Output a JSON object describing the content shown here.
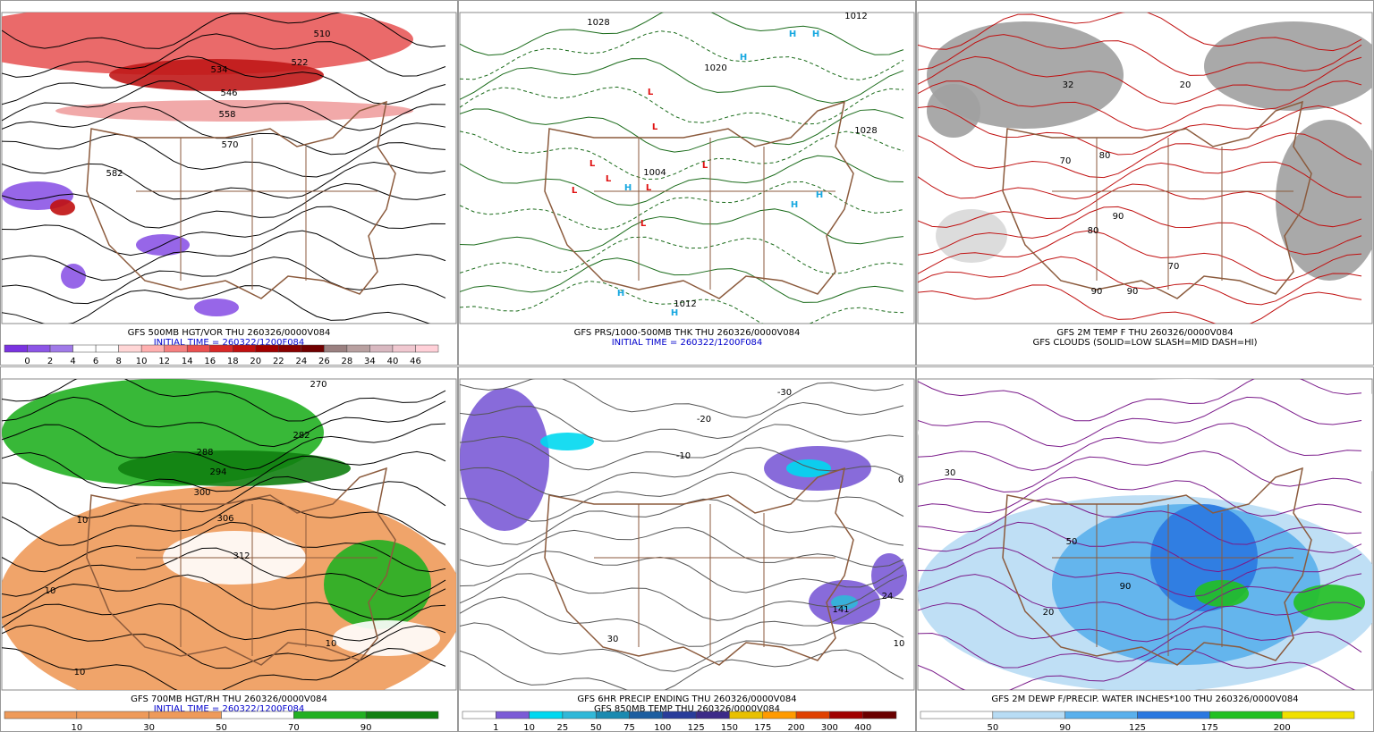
{
  "panels": [
    {
      "captions": [
        "GFS 500MB HGT/VOR THU 260326/0000V084",
        "INITIAL TIME = 260322/1200F084"
      ],
      "caption_colors": [
        "#000000",
        "#0000cc"
      ],
      "map_labels": [
        "510",
        "522",
        "534",
        "546",
        "558",
        "570",
        "582"
      ],
      "colorbar": {
        "colors": [
          "#7a33e0",
          "#8c55e6",
          "#a07ae8",
          "#ffffff",
          "#ffffff",
          "#ffd6d6",
          "#ffb0b0",
          "#f58080",
          "#ea5050",
          "#d82828",
          "#c01010",
          "#a00000",
          "#880000",
          "#700000",
          "#9a8080",
          "#b8a0a0",
          "#d8b8c0",
          "#f0c8d0",
          "#ffd0d8"
        ],
        "labels": [
          0,
          2,
          4,
          6,
          8,
          10,
          12,
          14,
          16,
          18,
          20,
          22,
          24,
          26,
          28,
          34,
          40,
          46
        ]
      }
    },
    {
      "captions": [
        "GFS PRS/1000-500MB THK THU 260326/0000V084",
        "INITIAL TIME = 260322/1200F084"
      ],
      "caption_colors": [
        "#000000",
        "#0000cc"
      ],
      "map_labels": [
        "1028",
        "1020",
        "1028",
        "1012",
        "1004",
        "1012",
        "H",
        "H",
        "H",
        "H",
        "H",
        "H",
        "H",
        "H",
        "L",
        "L",
        "L",
        "L",
        "L",
        "L",
        "L",
        "L"
      ]
    },
    {
      "captions": [
        "GFS 2M TEMP F THU 260326/0000V084",
        "GFS CLOUDS (SOLID=LOW SLASH=MID DASH=HI)"
      ],
      "caption_colors": [
        "#000000",
        "#000000"
      ],
      "map_labels": [
        "32",
        "20",
        "70",
        "80",
        "90",
        "80",
        "70",
        "90",
        "90"
      ]
    },
    {
      "captions": [
        "GFS 700MB HGT/RH THU 260326/0000V084",
        "INITIAL TIME = 260322/1200F084"
      ],
      "caption_colors": [
        "#000000",
        "#0000cc"
      ],
      "map_labels": [
        "270",
        "282",
        "288",
        "294",
        "300",
        "306",
        "312",
        "10",
        "10",
        "10",
        "10"
      ],
      "colorbar": {
        "colors": [
          "#ee9a5a",
          "#ee9a5a",
          "#ee9a5a",
          "#ffffff",
          "#22b022",
          "#118011"
        ],
        "labels": [
          10,
          30,
          50,
          70,
          90
        ]
      }
    },
    {
      "captions": [
        "GFS 6HR PRECIP ENDING THU 260326/0000V084",
        "GFS 850MB TEMP THU 260326/0000V084"
      ],
      "caption_colors": [
        "#000000",
        "#000000"
      ],
      "map_labels": [
        "-30",
        "-20",
        "-10",
        "0",
        "30",
        "24",
        "141",
        "10"
      ],
      "colorbar": {
        "colors": [
          "#ffffff",
          "#7b5bd6",
          "#00d8f0",
          "#30b8d8",
          "#1a8ab0",
          "#1c5ea0",
          "#283c9a",
          "#3c2a88",
          "#e8c000",
          "#ff9a00",
          "#e04000",
          "#a00000",
          "#6a0000"
        ],
        "labels": [
          1,
          10,
          25,
          50,
          75,
          100,
          125,
          150,
          175,
          200,
          300,
          400
        ]
      }
    },
    {
      "captions": [
        "GFS 2M DEWP F/PRECIP. WATER INCHES*100 THU 260326/0000V084"
      ],
      "caption_colors": [
        "#000000"
      ],
      "map_labels": [
        "30",
        "50",
        "90",
        "20"
      ],
      "colorbar": {
        "colors": [
          "#ffffff",
          "#b8dcf4",
          "#5ab0ec",
          "#2a78e0",
          "#22c022",
          "#f0e000"
        ],
        "labels": [
          50,
          90,
          125,
          175,
          200
        ]
      }
    }
  ]
}
